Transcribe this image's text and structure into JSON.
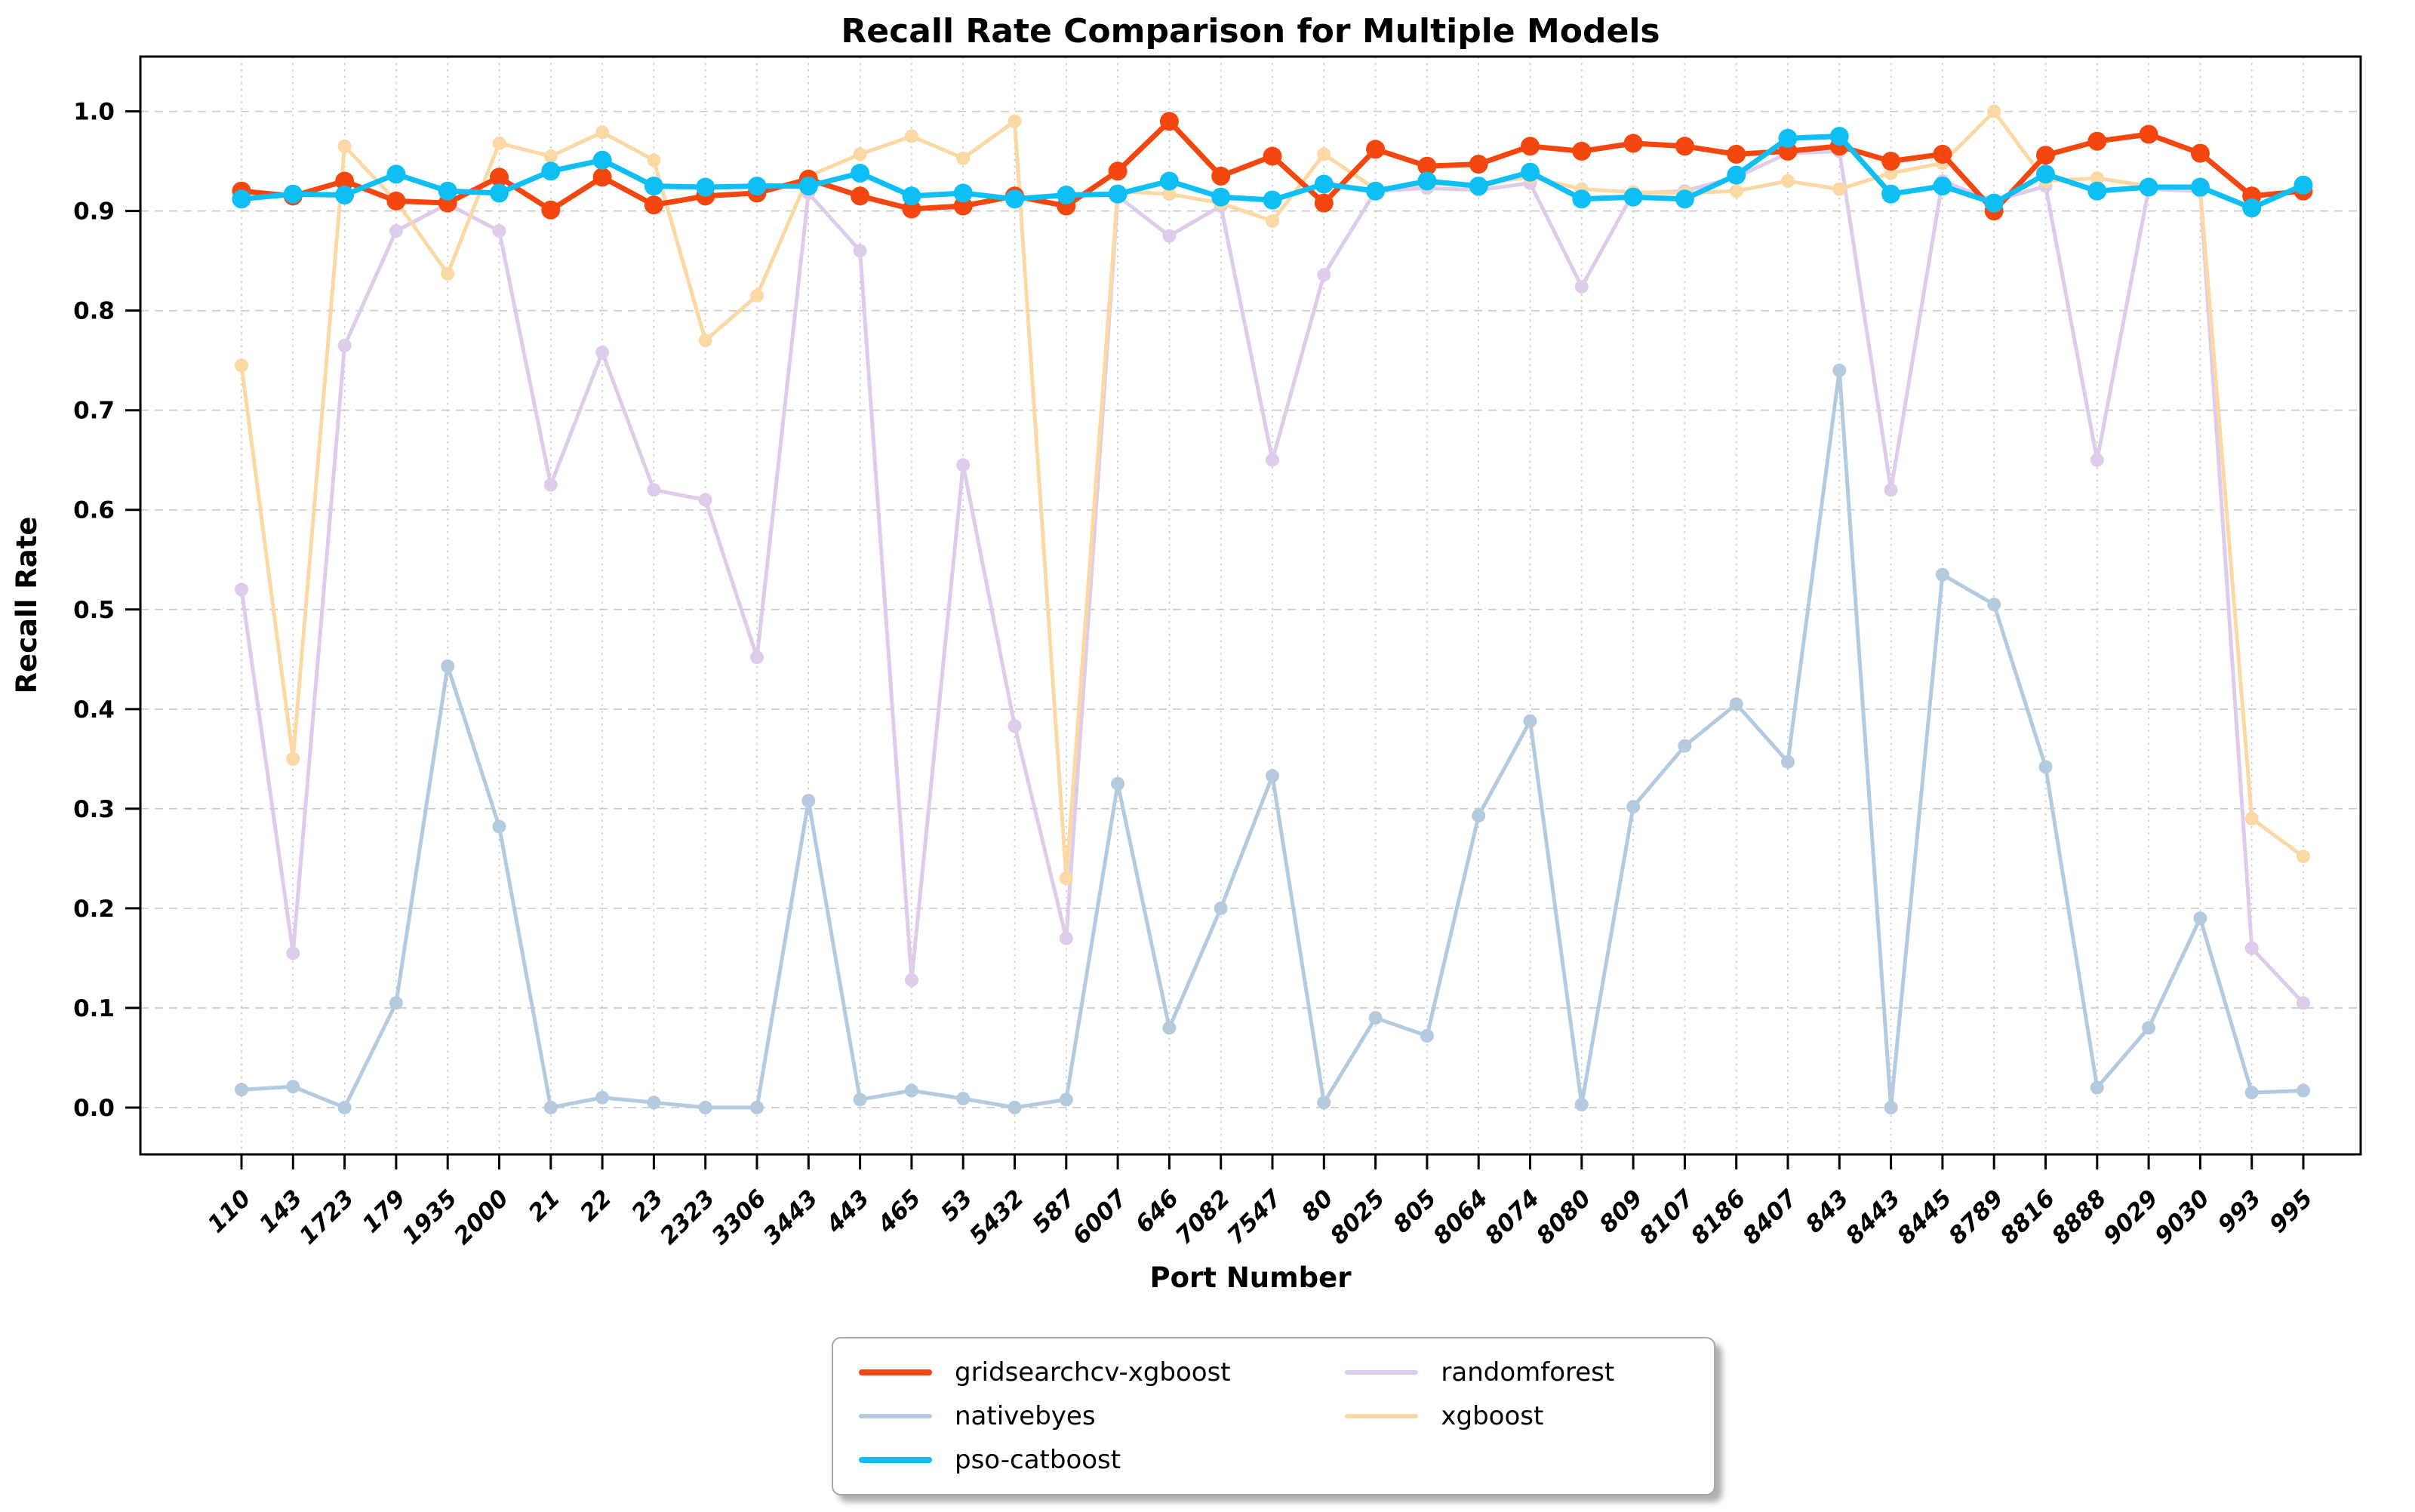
{
  "chart_data": {
    "type": "line",
    "title": "Recall Rate Comparison for Multiple Models",
    "xlabel": "Port Number",
    "ylabel": "Recall Rate",
    "ylim": [
      -0.047,
      1.055
    ],
    "yticks": [
      "0.0",
      "0.1",
      "0.2",
      "0.3",
      "0.4",
      "0.5",
      "0.6",
      "0.7",
      "0.8",
      "0.9",
      "1.0"
    ],
    "grid": "on",
    "grid_color": "#c9c9c9",
    "border_color": "#000000",
    "background_color": "#ffffff",
    "categories": [
      "110",
      "143",
      "1723",
      "179",
      "1935",
      "2000",
      "21",
      "22",
      "23",
      "2323",
      "3306",
      "3443",
      "443",
      "465",
      "53",
      "5432",
      "587",
      "6007",
      "646",
      "7082",
      "7547",
      "80",
      "8025",
      "805",
      "8064",
      "8074",
      "8080",
      "809",
      "8107",
      "8186",
      "8407",
      "843",
      "8443",
      "8445",
      "8789",
      "8816",
      "8888",
      "9029",
      "9030",
      "993",
      "995"
    ],
    "series": [
      {
        "name": "gridsearchcv-xgboost",
        "color": "#F4470F",
        "line_width": 7,
        "marker_radius": 12.5,
        "values": [
          0.92,
          0.915,
          0.93,
          0.91,
          0.908,
          0.934,
          0.901,
          0.934,
          0.906,
          0.915,
          0.918,
          0.932,
          0.915,
          0.902,
          0.905,
          0.915,
          0.905,
          0.94,
          0.99,
          0.935,
          0.955,
          0.908,
          0.962,
          0.945,
          0.947,
          0.965,
          0.96,
          0.968,
          0.965,
          0.957,
          0.96,
          0.965,
          0.95,
          0.957,
          0.9,
          0.956,
          0.97,
          0.977,
          0.958,
          0.915,
          0.92
        ]
      },
      {
        "name": "nativebyes",
        "color": "#B4CADF",
        "line_width": 5,
        "marker_radius": 9,
        "values": [
          0.018,
          0.021,
          0.0,
          0.105,
          0.443,
          0.282,
          0.0,
          0.01,
          0.005,
          0.0,
          0.0,
          0.308,
          0.008,
          0.017,
          0.009,
          0.0,
          0.008,
          0.325,
          0.08,
          0.2,
          0.333,
          0.005,
          0.09,
          0.072,
          0.293,
          0.388,
          0.003,
          0.302,
          0.363,
          0.405,
          0.347,
          0.74,
          0.0,
          0.535,
          0.505,
          0.342,
          0.02,
          0.08,
          0.19,
          0.015,
          0.017
        ]
      },
      {
        "name": "pso-catboost",
        "color": "#0EBFF5",
        "line_width": 7,
        "marker_radius": 12.5,
        "values": [
          0.912,
          0.917,
          0.916,
          0.937,
          0.92,
          0.918,
          0.94,
          0.951,
          0.925,
          0.924,
          0.925,
          0.925,
          0.938,
          0.915,
          0.918,
          0.912,
          0.916,
          0.917,
          0.93,
          0.914,
          0.911,
          0.927,
          0.92,
          0.93,
          0.925,
          0.939,
          0.912,
          0.914,
          0.912,
          0.936,
          0.973,
          0.975,
          0.917,
          0.925,
          0.908,
          0.937,
          0.92,
          0.924,
          0.924,
          0.903,
          0.926
        ]
      },
      {
        "name": "randomforest",
        "color": "#DECCEA",
        "line_width": 5,
        "marker_radius": 9,
        "values": [
          0.52,
          0.155,
          0.765,
          0.88,
          0.907,
          0.88,
          0.625,
          0.758,
          0.62,
          0.61,
          0.452,
          0.918,
          0.86,
          0.128,
          0.645,
          0.383,
          0.17,
          0.915,
          0.875,
          0.905,
          0.65,
          0.836,
          0.92,
          0.923,
          0.921,
          0.928,
          0.824,
          0.918,
          0.92,
          0.934,
          0.958,
          0.96,
          0.62,
          0.93,
          0.91,
          0.925,
          0.65,
          0.922,
          0.92,
          0.16,
          0.105
        ]
      },
      {
        "name": "xgboost",
        "color": "#FCD9A4",
        "line_width": 5,
        "marker_radius": 9,
        "values": [
          0.745,
          0.35,
          0.965,
          0.91,
          0.837,
          0.968,
          0.955,
          0.979,
          0.951,
          0.77,
          0.815,
          0.935,
          0.957,
          0.975,
          0.953,
          0.99,
          0.23,
          0.92,
          0.917,
          0.908,
          0.89,
          0.957,
          0.922,
          0.927,
          0.927,
          0.934,
          0.922,
          0.919,
          0.918,
          0.92,
          0.93,
          0.922,
          0.938,
          0.948,
          1.0,
          0.93,
          0.933,
          0.925,
          0.922,
          0.29,
          0.252
        ]
      }
    ],
    "draw_order": [
      "nativebyes",
      "randomforest",
      "xgboost",
      "gridsearchcv-xgboost",
      "pso-catboost"
    ],
    "legend": {
      "position": "bottom-center",
      "columns": 2,
      "rows": 3,
      "entries": [
        "gridsearchcv-xgboost",
        "nativebyes",
        "pso-catboost",
        "randomforest",
        "xgboost"
      ]
    }
  }
}
